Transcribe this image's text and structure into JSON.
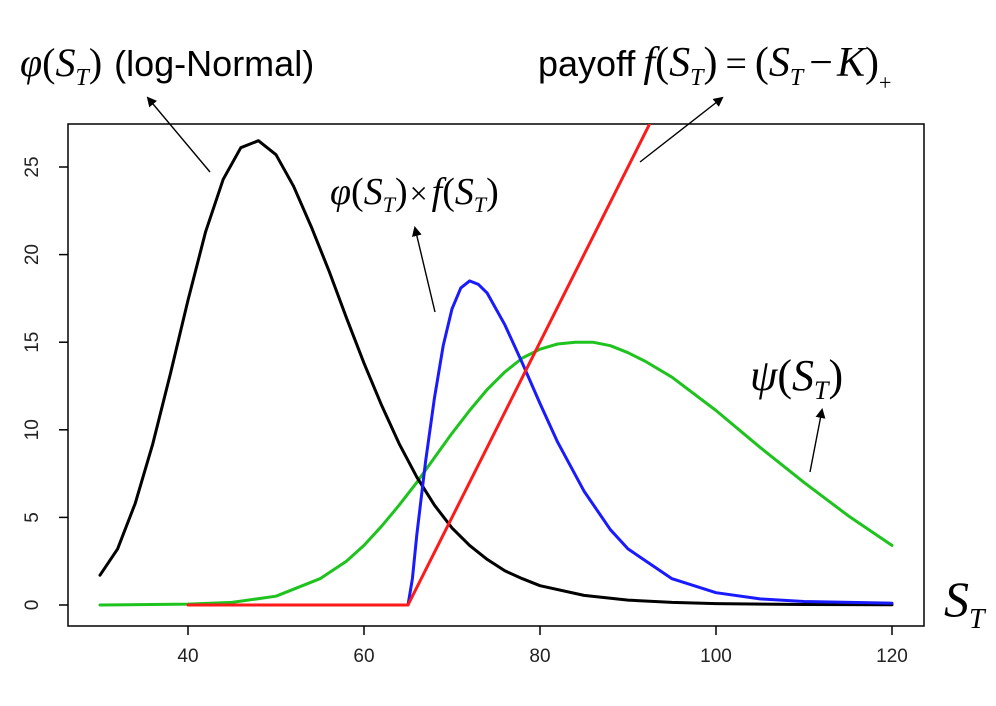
{
  "chart_data": {
    "type": "line",
    "title": "",
    "xlabel": "",
    "ylabel": "",
    "xlim": [
      28,
      122
    ],
    "ylim": [
      -1,
      27.5
    ],
    "x_ticks": [
      40,
      60,
      80,
      100,
      120
    ],
    "y_ticks": [
      0,
      5,
      10,
      15,
      20,
      25
    ],
    "grid": false,
    "legend": "none",
    "strike_K": 65,
    "series": [
      {
        "key": "lognormal",
        "color": "#000000",
        "x": [
          30,
          32,
          34,
          36,
          38,
          40,
          42,
          44,
          46,
          48,
          50,
          52,
          54,
          56,
          58,
          60,
          62,
          64,
          66,
          68,
          70,
          72,
          74,
          76,
          78,
          80,
          85,
          90,
          95,
          100,
          110,
          120
        ],
        "y": [
          1.7,
          3.2,
          5.8,
          9.2,
          13.2,
          17.4,
          21.3,
          24.3,
          26.1,
          26.5,
          25.7,
          23.9,
          21.6,
          19.1,
          16.4,
          13.8,
          11.4,
          9.2,
          7.3,
          5.7,
          4.4,
          3.4,
          2.6,
          1.95,
          1.5,
          1.1,
          0.55,
          0.28,
          0.15,
          0.08,
          0.03,
          0.01
        ]
      },
      {
        "key": "product",
        "color": "#1a1aff",
        "x": [
          65,
          65.5,
          66,
          67,
          68,
          69,
          70,
          71,
          72,
          73,
          74,
          76,
          78,
          80,
          82,
          85,
          88,
          90,
          95,
          100,
          105,
          110,
          120
        ],
        "y": [
          0,
          1.5,
          4.0,
          8.2,
          11.8,
          14.8,
          16.9,
          18.1,
          18.5,
          18.3,
          17.8,
          16.0,
          13.8,
          11.5,
          9.3,
          6.5,
          4.3,
          3.2,
          1.5,
          0.7,
          0.35,
          0.2,
          0.1
        ]
      },
      {
        "key": "psi",
        "color": "#1ec31e",
        "x": [
          30,
          40,
          45,
          50,
          55,
          58,
          60,
          62,
          64,
          66,
          68,
          70,
          72,
          74,
          76,
          78,
          80,
          82,
          84,
          85,
          86,
          88,
          90,
          92,
          95,
          100,
          105,
          110,
          115,
          120
        ],
        "y": [
          0,
          0.05,
          0.15,
          0.5,
          1.5,
          2.5,
          3.4,
          4.5,
          5.7,
          7.0,
          8.4,
          9.8,
          11.1,
          12.3,
          13.3,
          14.1,
          14.6,
          14.9,
          15.0,
          15.0,
          15.0,
          14.8,
          14.4,
          13.9,
          13.0,
          11.1,
          9.0,
          7.0,
          5.1,
          3.4
        ]
      },
      {
        "key": "payoff",
        "color": "#ff1a1a",
        "x": [
          40,
          65,
          92.5
        ],
        "y": [
          0,
          0,
          27.5
        ]
      }
    ]
  },
  "annotations": {
    "lognormal": {
      "fn": "φ",
      "sub_var": "S",
      "sub": "T",
      "suffix": "(log-Normal)"
    },
    "payoff": {
      "prefix": "payoff",
      "fn": "f",
      "var": "S",
      "sub": "T",
      "eq": "=",
      "K": "K",
      "plus": "+"
    },
    "product": {
      "fn1": "φ",
      "times": "×",
      "fn2": "f",
      "var": "S",
      "sub": "T"
    },
    "psi": {
      "fn": "ψ",
      "var": "S",
      "sub": "T"
    },
    "axis_var": {
      "var": "S",
      "sub": "T"
    }
  }
}
